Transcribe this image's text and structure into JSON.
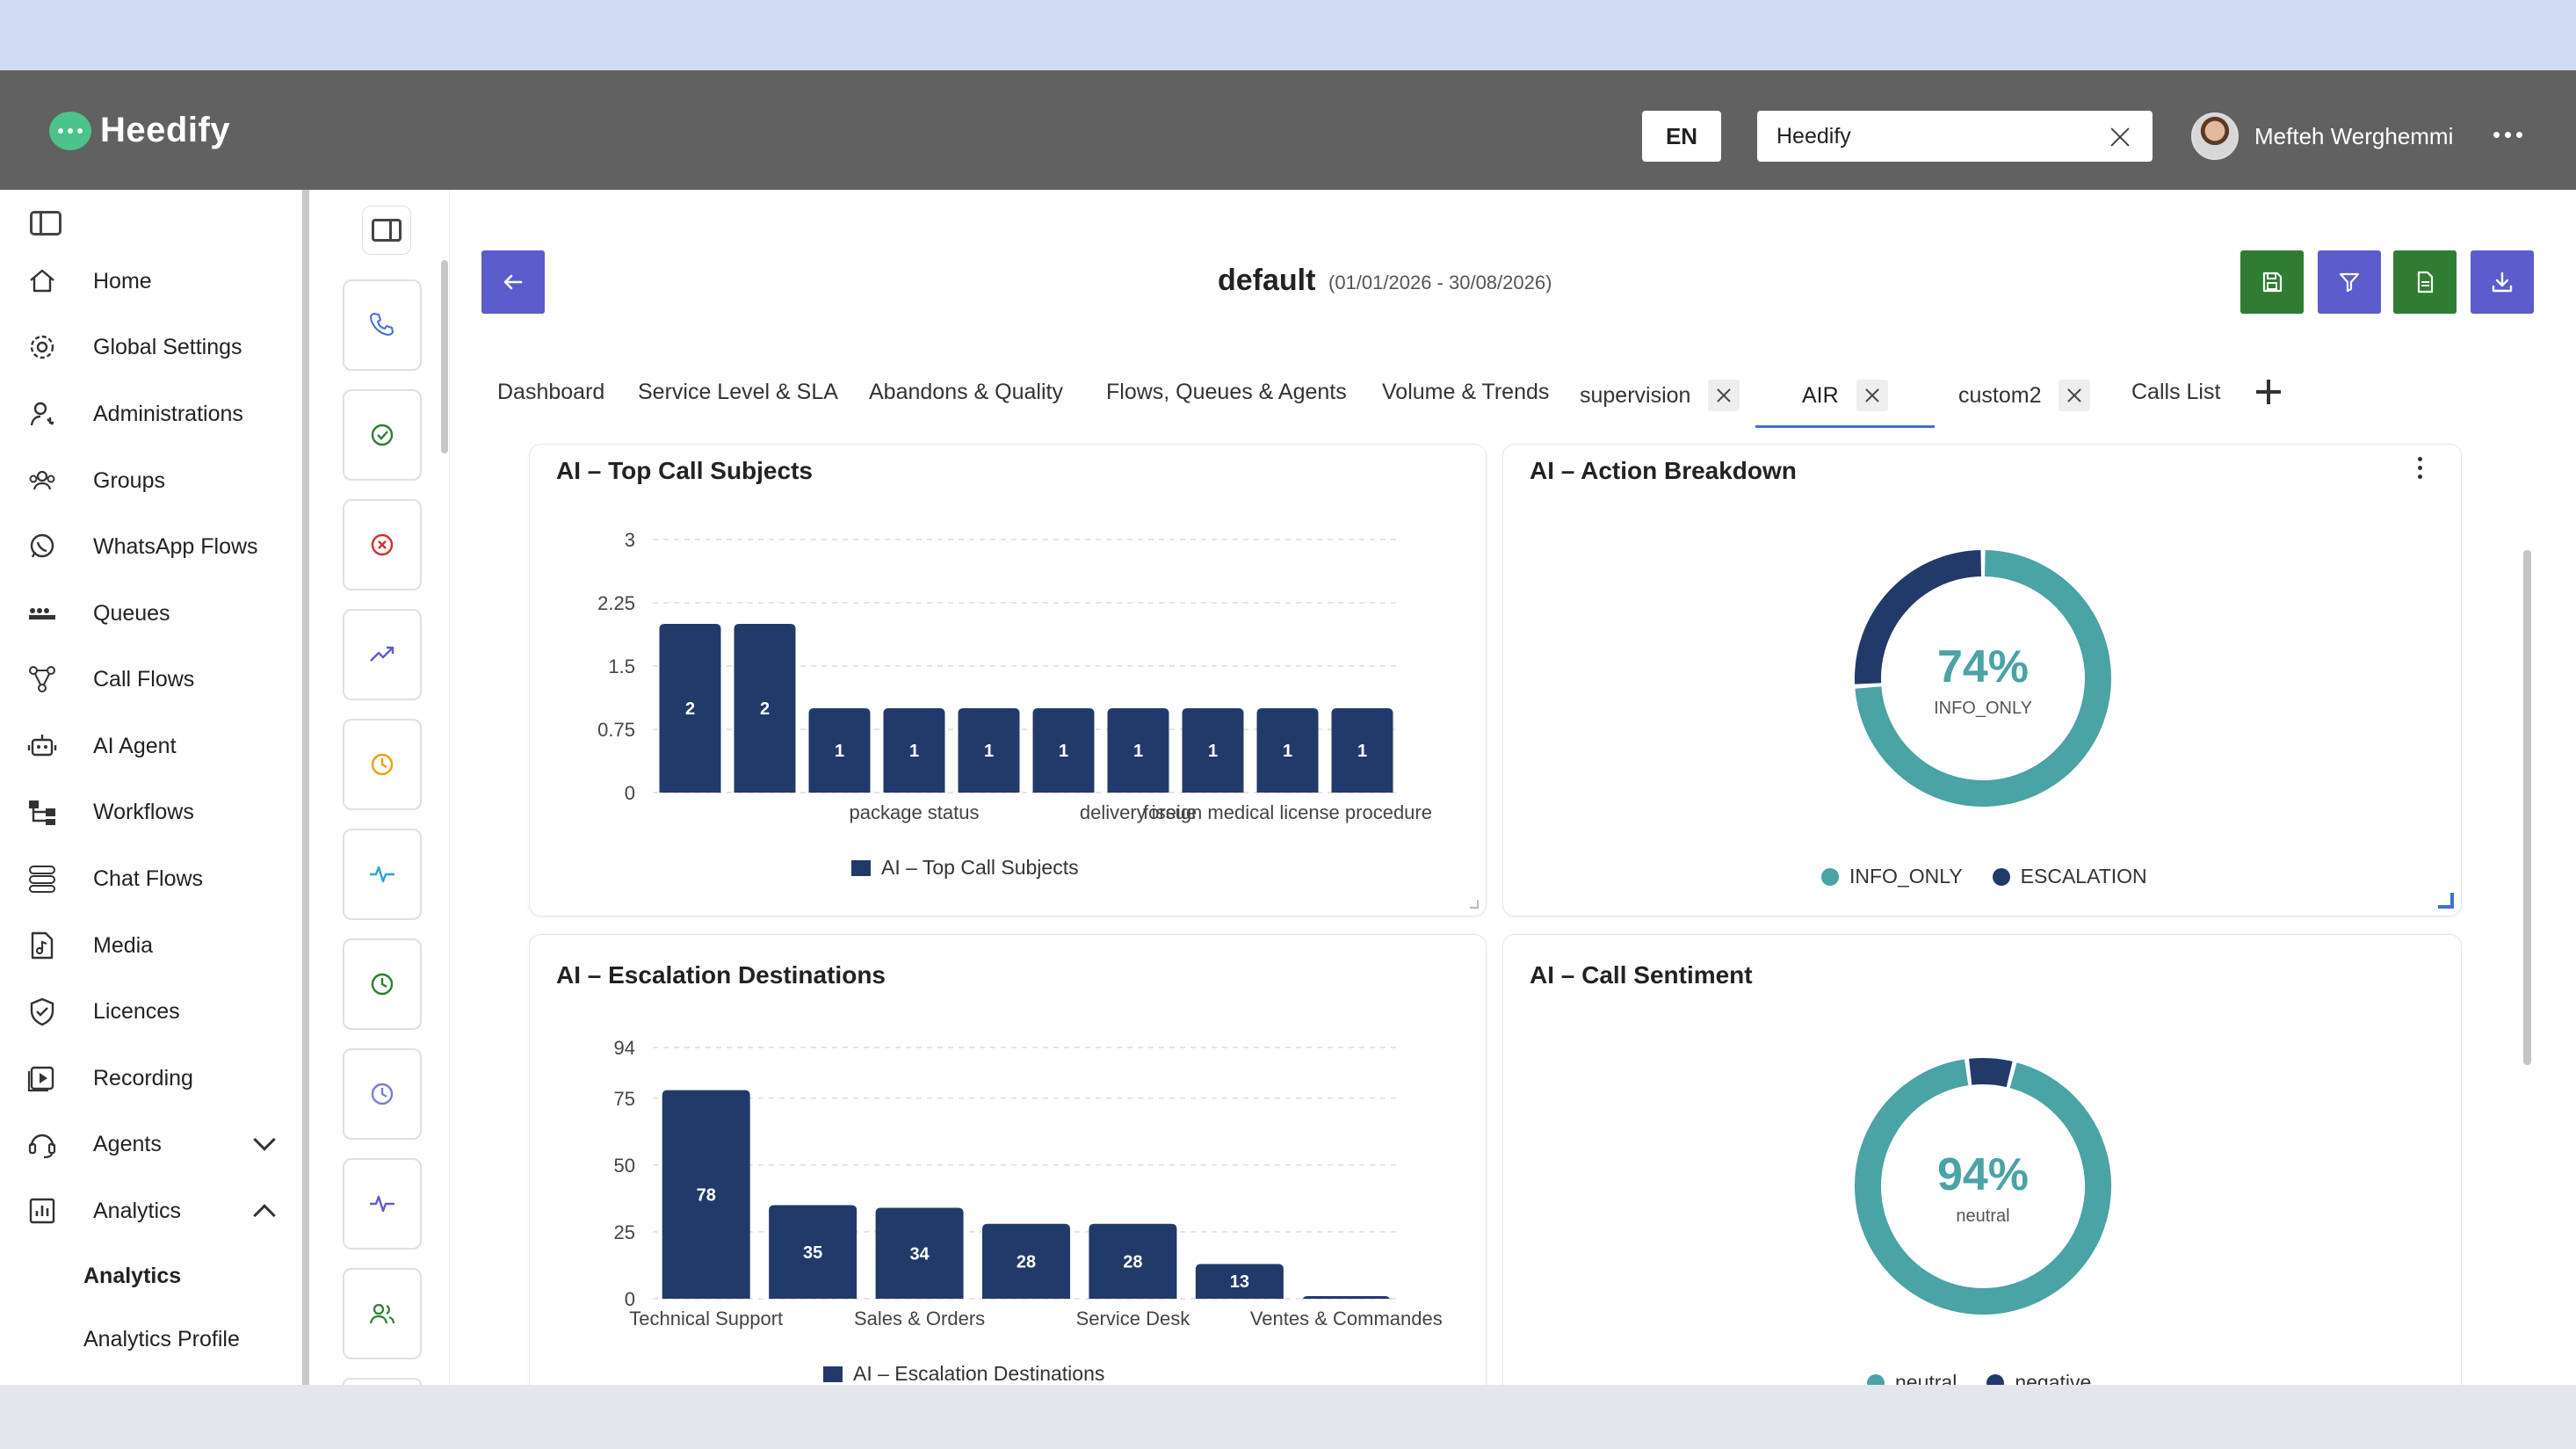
{
  "header": {
    "logo_text": "Heedify",
    "language": "EN",
    "tenant_value": "Heedify",
    "user_name": "Mefteh Werghemmi"
  },
  "sidebar": {
    "items": [
      {
        "label": "Home",
        "icon": "home-icon"
      },
      {
        "label": "Global Settings",
        "icon": "gear-icon"
      },
      {
        "label": "Administrations",
        "icon": "admin-user-icon"
      },
      {
        "label": "Groups",
        "icon": "groups-icon"
      },
      {
        "label": "WhatsApp Flows",
        "icon": "whatsapp-icon"
      },
      {
        "label": "Queues",
        "icon": "queues-icon"
      },
      {
        "label": "Call Flows",
        "icon": "call-flows-icon"
      },
      {
        "label": "AI Agent",
        "icon": "robot-icon"
      },
      {
        "label": "Workflows",
        "icon": "workflows-icon"
      },
      {
        "label": "Chat Flows",
        "icon": "chat-flows-icon"
      },
      {
        "label": "Media",
        "icon": "media-icon"
      },
      {
        "label": "Licences",
        "icon": "shield-check-icon"
      },
      {
        "label": "Recording",
        "icon": "recording-icon"
      },
      {
        "label": "Agents",
        "icon": "headset-icon"
      },
      {
        "label": "Analytics",
        "icon": "analytics-icon"
      }
    ],
    "analytics_sub": [
      "Analytics",
      "Analytics Profile"
    ]
  },
  "toolbar": {
    "title": "default",
    "date_range": "(01/01/2026 - 30/08/2026)"
  },
  "tabs": [
    {
      "label": "Dashboard",
      "closable": false
    },
    {
      "label": "Service Level & SLA",
      "closable": false
    },
    {
      "label": "Abandons & Quality",
      "closable": false
    },
    {
      "label": "Flows, Queues & Agents",
      "closable": false
    },
    {
      "label": "Volume & Trends",
      "closable": false
    },
    {
      "label": "supervision",
      "closable": true
    },
    {
      "label": "AIR",
      "closable": true,
      "active": true
    },
    {
      "label": "custom2",
      "closable": true
    },
    {
      "label": "Calls List",
      "closable": false
    }
  ],
  "colors": {
    "bar": "#223a6a",
    "teal": "#4aa3a5",
    "navy": "#223a6a",
    "accent": "#3f6fd6",
    "purple": "#5c5ccd",
    "green": "#2e7d32"
  },
  "charts": {
    "top_subjects": {
      "title": "AI – Top Call Subjects",
      "legend": "AI – Top Call Subjects"
    },
    "action_breakdown": {
      "title": "AI – Action Breakdown",
      "center_value": "74%",
      "center_label": "INFO_ONLY",
      "legend": [
        "INFO_ONLY",
        "ESCALATION"
      ]
    },
    "escalation": {
      "title": "AI – Escalation Destinations",
      "legend": "AI – Escalation Destinations"
    },
    "sentiment": {
      "title": "AI – Call Sentiment",
      "center_value": "94%",
      "center_label": "neutral",
      "legend": [
        "neutral",
        "negative"
      ]
    }
  },
  "chart_data": [
    {
      "type": "bar",
      "title": "AI – Top Call Subjects",
      "categories": [
        "",
        "",
        "",
        "package status",
        "",
        "",
        "delivery issue",
        "",
        "foreign medical license procedure",
        ""
      ],
      "values": [
        2,
        2,
        1,
        1,
        1,
        1,
        1,
        1,
        1,
        1
      ],
      "ylim": [
        0,
        3
      ],
      "yticks": [
        0,
        0.75,
        1.5,
        2.25,
        3
      ],
      "legend": [
        "AI – Top Call Subjects"
      ]
    },
    {
      "type": "pie",
      "title": "AI – Action Breakdown",
      "labels": [
        "INFO_ONLY",
        "ESCALATION"
      ],
      "values": [
        74,
        26
      ],
      "colors": [
        "#4aa3a5",
        "#223a6a"
      ]
    },
    {
      "type": "bar",
      "title": "AI – Escalation Destinations",
      "categories": [
        "Technical Support",
        "",
        "Sales & Orders",
        "",
        "Service Desk",
        "",
        "Ventes & Commandes"
      ],
      "values": [
        78,
        35,
        34,
        28,
        28,
        13,
        1
      ],
      "ylim": [
        0,
        94
      ],
      "yticks": [
        0,
        25,
        50,
        75,
        94
      ],
      "legend": [
        "AI – Escalation Destinations"
      ]
    },
    {
      "type": "pie",
      "title": "AI – Call Sentiment",
      "labels": [
        "neutral",
        "negative"
      ],
      "values": [
        94,
        6
      ],
      "colors": [
        "#4aa3a5",
        "#223a6a"
      ]
    }
  ]
}
